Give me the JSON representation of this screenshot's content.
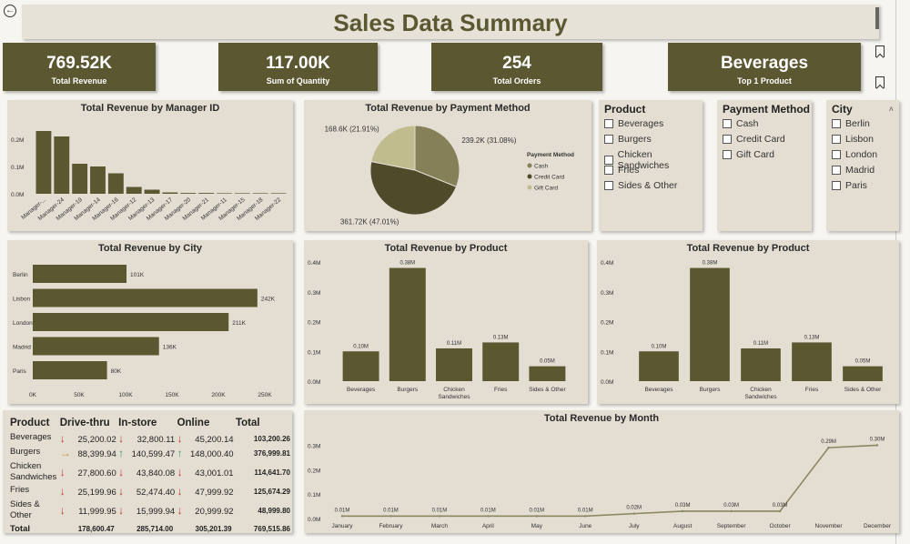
{
  "title": "Sales Data Summary",
  "kpis": [
    {
      "value": "769.52K",
      "label": "Total Revenue"
    },
    {
      "value": "117.00K",
      "label": "Sum of Quantity"
    },
    {
      "value": "254",
      "label": "Total Orders"
    },
    {
      "value": "Beverages",
      "label": "Top 1 Product"
    }
  ],
  "slicers": {
    "product": {
      "title": "Product",
      "items": [
        "Beverages",
        "Burgers",
        "Chicken Sandwiches",
        "Fries",
        "Sides & Other"
      ]
    },
    "payment": {
      "title": "Payment Method",
      "items": [
        "Cash",
        "Credit Card",
        "Gift Card"
      ]
    },
    "city": {
      "title": "City",
      "items": [
        "Berlin",
        "Lisbon",
        "London",
        "Madrid",
        "Paris"
      ]
    }
  },
  "colors": {
    "primary": "#5b5730",
    "cash": "#858058",
    "credit": "#4f4b2a",
    "gift": "#c1bc8e",
    "panel": "#e3ddd2",
    "down": "#c0362c",
    "up": "#3c9a55"
  },
  "matrix": {
    "headers": [
      "Product",
      "Drive-thru",
      "In-store",
      "Online",
      "Total"
    ],
    "rows": [
      {
        "p": "Beverages",
        "d": "25,200.02",
        "da": "down",
        "i": "32,800.11",
        "ia": "down",
        "o": "45,200.14",
        "oa": "down",
        "t": "103,200.26"
      },
      {
        "p": "Burgers",
        "d": "88,399.94",
        "da": "side",
        "i": "140,599.47",
        "ia": "up",
        "o": "148,000.40",
        "oa": "up",
        "t": "376,999.81"
      },
      {
        "p": "Chicken Sandwiches",
        "d": "27,800.60",
        "da": "down",
        "i": "43,840.08",
        "ia": "down",
        "o": "43,001.01",
        "oa": "down",
        "t": "114,641.70"
      },
      {
        "p": "Fries",
        "d": "25,199.96",
        "da": "down",
        "i": "52,474.40",
        "ia": "down",
        "o": "47,999.92",
        "oa": "down",
        "t": "125,674.29"
      },
      {
        "p": "Sides & Other",
        "d": "11,999.95",
        "da": "down",
        "i": "15,999.94",
        "ia": "down",
        "o": "20,999.92",
        "oa": "down",
        "t": "48,999.80"
      }
    ],
    "total": {
      "p": "Total",
      "d": "178,600.47",
      "i": "285,714.00",
      "o": "305,201.39",
      "t": "769,515.86"
    }
  },
  "chart_data": [
    {
      "type": "bar",
      "title": "Total Revenue by Manager ID",
      "categories": [
        "Manager-...",
        "Manager-24",
        "Manager-19",
        "Manager-14",
        "Manager-16",
        "Manager-12",
        "Manager-13",
        "Manager-17",
        "Manager-20",
        "Manager-21",
        "Manager-11",
        "Manager-15",
        "Manager-18",
        "Manager-22"
      ],
      "values": [
        0.23,
        0.21,
        0.11,
        0.1,
        0.075,
        0.025,
        0.015,
        0.005,
        0.003,
        0.003,
        0.002,
        0.002,
        0.002,
        0.002
      ],
      "ticks": [
        "0.2M",
        "0.1M",
        "0.0M"
      ],
      "ylim": [
        0,
        0.25
      ]
    },
    {
      "type": "pie",
      "title": "Total Revenue by Payment Method",
      "legend_title": "Payment Method",
      "slices": [
        {
          "name": "Cash",
          "value": 239.2,
          "label": "239.2K (31.08%)"
        },
        {
          "name": "Credit Card",
          "value": 361.72,
          "label": "361.72K (47.01%)"
        },
        {
          "name": "Gift Card",
          "value": 168.6,
          "label": "168.6K (21.91%)"
        }
      ]
    },
    {
      "type": "bar",
      "orientation": "horizontal",
      "title": "Total Revenue by City",
      "categories": [
        "Berlin",
        "Lisbon",
        "London",
        "Madrid",
        "Paris"
      ],
      "values": [
        101,
        242,
        211,
        136,
        80
      ],
      "labels": [
        "101K",
        "242K",
        "211K",
        "136K",
        "80K"
      ],
      "ticks": [
        "0K",
        "50K",
        "100K",
        "150K",
        "200K",
        "250K"
      ],
      "xlim": [
        0,
        250
      ]
    },
    {
      "type": "bar",
      "title": "Total Revenue by Product",
      "categories": [
        "Beverages",
        "Burgers",
        "Chicken Sandwiches",
        "Fries",
        "Sides & Other"
      ],
      "values": [
        0.1,
        0.38,
        0.11,
        0.13,
        0.05
      ],
      "labels": [
        "0.10M",
        "0.38M",
        "0.11M",
        "0.13M",
        "0.05M"
      ],
      "ticks": [
        "0.4M",
        "0.3M",
        "0.2M",
        "0.1M",
        "0.0M"
      ],
      "ylim": [
        0,
        0.4
      ]
    },
    {
      "type": "bar",
      "title": "Total Revenue by Product",
      "categories": [
        "Beverages",
        "Burgers",
        "Chicken Sandwiches",
        "Fries",
        "Sides & Other"
      ],
      "values": [
        0.1,
        0.38,
        0.11,
        0.13,
        0.05
      ],
      "labels": [
        "0.10M",
        "0.38M",
        "0.11M",
        "0.13M",
        "0.05M"
      ],
      "ticks": [
        "0.4M",
        "0.3M",
        "0.2M",
        "0.1M",
        "0.0M"
      ],
      "ylim": [
        0,
        0.4
      ]
    },
    {
      "type": "line",
      "title": "Total Revenue by Month",
      "categories": [
        "January",
        "February",
        "March",
        "April",
        "May",
        "June",
        "July",
        "August",
        "September",
        "October",
        "November",
        "December"
      ],
      "values": [
        0.01,
        0.01,
        0.01,
        0.01,
        0.01,
        0.01,
        0.02,
        0.03,
        0.03,
        0.03,
        0.29,
        0.3
      ],
      "labels": [
        "0.01M",
        "0.01M",
        "0.01M",
        "0.01M",
        "0.01M",
        "0.01M",
        "0.02M",
        "0.03M",
        "0.03M",
        "0.03M",
        "0.29M",
        "0.30M"
      ],
      "ticks": [
        "0.3M",
        "0.2M",
        "0.1M",
        "0.0M"
      ],
      "ylim": [
        0,
        0.35
      ]
    }
  ]
}
